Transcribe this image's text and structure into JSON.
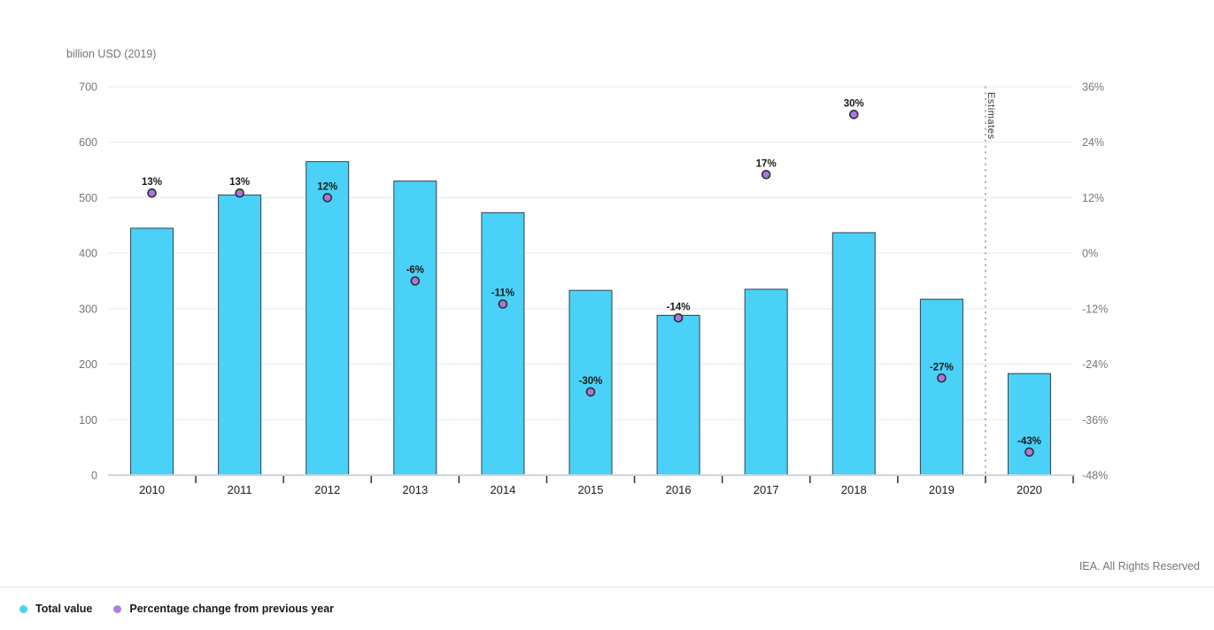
{
  "page": {
    "attribution": "IEA. All Rights Reserved"
  },
  "legend": {
    "items": [
      {
        "label": "Total value",
        "marker_color": "#4BD3F7"
      },
      {
        "label": "Percentage change from previous year",
        "marker_color": "#AE80E2"
      }
    ]
  },
  "colors": {
    "bar_fill": "#4AD1F7",
    "bar_stroke": "#32414C",
    "dot_fill": "#A678DD",
    "dot_stroke": "#2E2E2E",
    "grid": "#EAEAEA",
    "axis_line": "#C6D6E4",
    "x_tick": "#2E2E2E",
    "estimate_line": "#8C8C8C"
  },
  "chart_data": {
    "type": "bar",
    "title": "",
    "categories": [
      "2010",
      "2011",
      "2012",
      "2013",
      "2014",
      "2015",
      "2016",
      "2017",
      "2018",
      "2019",
      "2020"
    ],
    "series": [
      {
        "name": "Total value",
        "type": "bar",
        "axis": "left",
        "values": [
          445,
          505,
          565,
          530,
          473,
          333,
          288,
          335,
          437,
          317,
          183
        ]
      },
      {
        "name": "Percentage change from previous year",
        "type": "scatter",
        "axis": "right",
        "values": [
          13,
          13,
          12,
          -6,
          -11,
          -30,
          -14,
          17,
          30,
          -27,
          -43
        ],
        "labels": [
          "13%",
          "13%",
          "12%",
          "-6%",
          "-11%",
          "-30%",
          "-14%",
          "17%",
          "30%",
          "-27%",
          "-43%"
        ]
      }
    ],
    "left_axis": {
      "title": "billion USD (2019)",
      "ticks": [
        700,
        600,
        500,
        400,
        300,
        200,
        100,
        0
      ],
      "range": [
        0,
        700
      ]
    },
    "right_axis": {
      "ticks": [
        "36%",
        "24%",
        "12%",
        "0%",
        "-12%",
        "-24%",
        "-36%",
        "-48%"
      ],
      "range": [
        -48,
        36
      ]
    },
    "estimates": {
      "label": "Estimates",
      "from_category": "2020"
    },
    "grid": true,
    "legend_position": "bottom-left"
  }
}
